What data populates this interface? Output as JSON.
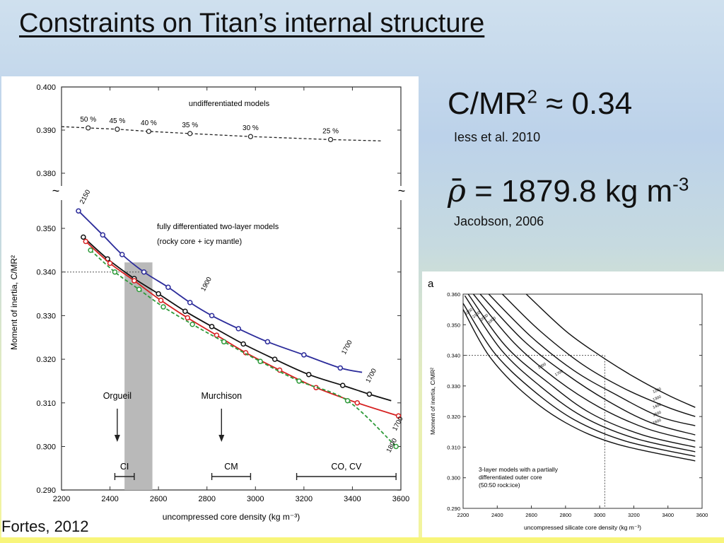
{
  "slide": {
    "title": "Constraints on Titan’s internal structure",
    "eq1": {
      "lhs": "C/MR",
      "exp": "2",
      "rel": "≈",
      "rhs": "0.34"
    },
    "cite1": "Iess et al. 2010",
    "eq2": {
      "sym": "ρ",
      "bar": "¯",
      "rhs": " = 1879.8 kg m",
      "exp": "-3"
    },
    "cite2": "Jacobson, 2006",
    "credit": "Fortes, 2012"
  },
  "chart_data": [
    {
      "type": "line",
      "xlabel": "uncompressed core density (kg m⁻³)",
      "ylabel": "Moment of inertia, C/MR²",
      "xticks": [
        2200,
        2400,
        2600,
        2800,
        3000,
        3200,
        3400,
        3600
      ],
      "yticks_top": [
        "0.400",
        "0.390",
        "0.380"
      ],
      "yticks_bottom": [
        "0.350",
        "0.340",
        "0.330",
        "0.320",
        "0.310",
        "0.300",
        "0.290"
      ],
      "xlim": [
        2200,
        3600
      ],
      "ylim": [
        0.29,
        0.4
      ],
      "break_symbol": "~",
      "undiff": {
        "label": "undifferentiated models",
        "x": [
          2310,
          2430,
          2560,
          2730,
          2980,
          3310,
          3520
        ],
        "y": [
          0.3905,
          0.3902,
          0.3897,
          0.3892,
          0.3885,
          0.3878,
          0.3875
        ],
        "point_labels": [
          "50 %",
          "45 %",
          "40 %",
          "35 %",
          "30 %",
          "25 %",
          ""
        ]
      },
      "diff_label_1": "fully differentiated two-layer models",
      "diff_label_2": "(rocky core + icy mantle)",
      "series": [
        {
          "color": "#2b2b9a",
          "dashed": false,
          "x": [
            2270,
            2370,
            2450,
            2540,
            2640,
            2730,
            2820,
            2930,
            3050,
            3200,
            3350,
            3440
          ],
          "y": [
            0.354,
            0.3485,
            0.344,
            0.34,
            0.3365,
            0.333,
            0.33,
            0.327,
            0.324,
            0.321,
            0.318,
            0.317
          ]
        },
        {
          "color": "#111111",
          "dashed": false,
          "x": [
            2290,
            2390,
            2500,
            2600,
            2710,
            2820,
            2950,
            3080,
            3220,
            3360,
            3470,
            3560
          ],
          "y": [
            0.348,
            0.343,
            0.3385,
            0.335,
            0.331,
            0.3275,
            0.3235,
            0.32,
            0.3165,
            0.314,
            0.312,
            0.3105
          ]
        },
        {
          "color": "#d62020",
          "dashed": false,
          "x": [
            2300,
            2400,
            2500,
            2610,
            2720,
            2840,
            2960,
            3100,
            3250,
            3420,
            3590
          ],
          "y": [
            0.347,
            0.342,
            0.338,
            0.3335,
            0.3295,
            0.3255,
            0.3215,
            0.3175,
            0.3135,
            0.31,
            0.307
          ]
        },
        {
          "color": "#2e9a3a",
          "dashed": true,
          "x": [
            2320,
            2420,
            2520,
            2620,
            2740,
            2870,
            3020,
            3180,
            3380,
            3580
          ],
          "y": [
            0.345,
            0.34,
            0.336,
            0.332,
            0.328,
            0.324,
            0.3195,
            0.315,
            0.3105,
            0.3
          ]
        }
      ],
      "curve_labels": [
        "2150",
        "1900",
        "1700",
        "1700",
        "1700",
        "1800"
      ],
      "reference_line": {
        "y": 0.34,
        "x_end": 2560
      },
      "shaded_band": {
        "x": [
          2460,
          2575
        ]
      },
      "meteorites": [
        {
          "name": "Orgueil",
          "x": 2430
        },
        {
          "name": "Murchison",
          "x": 2860
        }
      ],
      "ranges": [
        {
          "name": "CI",
          "x": [
            2420,
            2500
          ]
        },
        {
          "name": "CM",
          "x": [
            2820,
            2980
          ]
        },
        {
          "name": "CO, CV",
          "x": [
            3170,
            3580
          ]
        }
      ]
    },
    {
      "type": "line",
      "panel_letter": "a",
      "xlabel": "uncompressed silicate core density (kg m⁻³)",
      "ylabel": "Moment of inertia, C/MR²",
      "xticks": [
        2200,
        2400,
        2600,
        2800,
        3000,
        3200,
        3400,
        3600
      ],
      "yticks": [
        "0.360",
        "0.350",
        "0.340",
        "0.330",
        "0.320",
        "0.310",
        "0.300",
        "0.290"
      ],
      "xlim": [
        2200,
        3600
      ],
      "ylim": [
        0.29,
        0.36
      ],
      "series": [
        {
          "name": "1200",
          "x": [
            2570,
            2800,
            3000,
            3200,
            3400,
            3560
          ],
          "y": [
            0.36,
            0.348,
            0.34,
            0.333,
            0.327,
            0.323
          ]
        },
        {
          "name": "1300",
          "x": [
            2430,
            2650,
            2900,
            3150,
            3400,
            3560
          ],
          "y": [
            0.36,
            0.348,
            0.337,
            0.329,
            0.323,
            0.32
          ]
        },
        {
          "name": "1400",
          "x": [
            2350,
            2600,
            2850,
            3100,
            3350,
            3560
          ],
          "y": [
            0.36,
            0.346,
            0.335,
            0.327,
            0.32,
            0.317
          ]
        },
        {
          "name": "1500",
          "x": [
            2300,
            2550,
            2800,
            3050,
            3300,
            3560
          ],
          "y": [
            0.36,
            0.345,
            0.334,
            0.325,
            0.318,
            0.314
          ]
        },
        {
          "name": "1600",
          "x": [
            2260,
            2500,
            2750,
            3000,
            3280,
            3560
          ],
          "y": [
            0.36,
            0.344,
            0.332,
            0.323,
            0.316,
            0.312
          ]
        },
        {
          "name": "1700",
          "x": [
            2230,
            2450,
            2700,
            2950,
            3250,
            3560
          ],
          "y": [
            0.36,
            0.343,
            0.331,
            0.321,
            0.314,
            0.31
          ]
        },
        {
          "name": "1800",
          "x": [
            2210,
            2420,
            2650,
            2900,
            3200,
            3560
          ],
          "y": [
            0.3595,
            0.342,
            0.33,
            0.32,
            0.313,
            0.3085
          ]
        },
        {
          "name": "2000",
          "x": [
            2200,
            2380,
            2600,
            2850,
            3150,
            3560
          ],
          "y": [
            0.357,
            0.341,
            0.329,
            0.319,
            0.312,
            0.307
          ]
        },
        {
          "name": "2200",
          "x": [
            2200,
            2350,
            2550,
            2800,
            3100,
            3560
          ],
          "y": [
            0.355,
            0.34,
            0.328,
            0.318,
            0.311,
            0.3055
          ]
        }
      ],
      "left_labels": [
        "2200",
        "2100",
        "2000",
        "1900"
      ],
      "mid_labels": [
        "1800",
        "1700"
      ],
      "right_labels": [
        "1200",
        "1300",
        "1400",
        "1500",
        "1600"
      ],
      "reference_line": {
        "y": 0.34,
        "x": 3030
      },
      "note_lines": [
        "3-layer models with a partially",
        "differentiated outer core",
        "(50:50 rock:ice)"
      ]
    }
  ]
}
